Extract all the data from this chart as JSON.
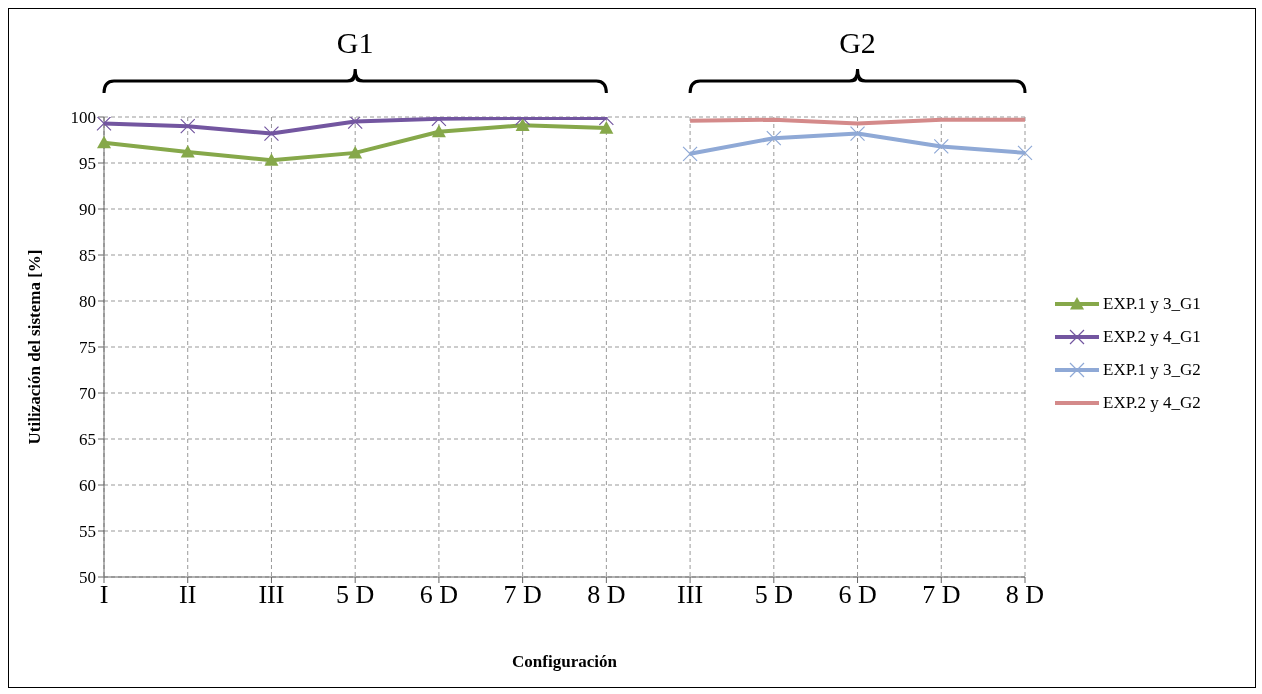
{
  "chart_data": {
    "type": "line",
    "xlabel": "Configuración",
    "ylabel": "Utilización del sistema [%]",
    "categories": [
      "I",
      "II",
      "III",
      "5 D",
      "6 D",
      "7 D",
      "8 D",
      "III",
      "5 D",
      "6 D",
      "7 D",
      "8 D"
    ],
    "series": [
      {
        "name": "EXP.1 y 3_G1",
        "color": "#86a84a",
        "marker": "triangle",
        "values": [
          97.2,
          96.2,
          95.3,
          96.1,
          98.4,
          99.1,
          98.8,
          null,
          null,
          null,
          null,
          null
        ]
      },
      {
        "name": "EXP.2 y 4_G1",
        "color": "#7356a0",
        "marker": "cross",
        "values": [
          99.3,
          99.0,
          98.2,
          99.5,
          99.8,
          99.9,
          99.9,
          null,
          null,
          null,
          null,
          null
        ]
      },
      {
        "name": "EXP.1 y 3_G2",
        "color": "#8fa9d6",
        "marker": "cross",
        "values": [
          null,
          null,
          null,
          null,
          null,
          null,
          null,
          96.0,
          97.7,
          98.2,
          96.8,
          96.1
        ]
      },
      {
        "name": "EXP.2 y 4_G2",
        "color": "#d48a8a",
        "marker": "none",
        "values": [
          null,
          null,
          null,
          null,
          null,
          null,
          null,
          99.6,
          99.7,
          99.3,
          99.7,
          99.7
        ]
      }
    ],
    "annotations": [
      "G1",
      "G2"
    ],
    "ylim": [
      50,
      100
    ],
    "yticks": [
      50,
      55,
      60,
      65,
      70,
      75,
      80,
      85,
      90,
      95,
      100
    ],
    "grid": true,
    "legend": "right",
    "line_style": "solid"
  }
}
